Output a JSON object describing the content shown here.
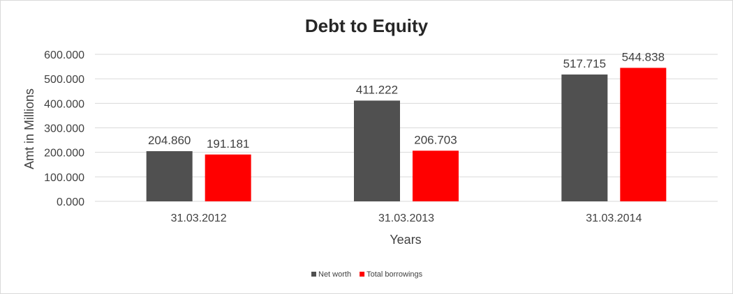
{
  "chart_data": {
    "type": "bar",
    "title": "Debt to Equity",
    "xlabel": "Years",
    "ylabel": "Amt in Millions",
    "categories": [
      "31.03.2012",
      "31.03.2013",
      "31.03.2014"
    ],
    "series": [
      {
        "name": "Net worth",
        "values": [
          204.86,
          411.222,
          517.715
        ],
        "labels": [
          "204.860",
          "411.222",
          "517.715"
        ],
        "color": "#505050"
      },
      {
        "name": "Total borrowings",
        "values": [
          191.181,
          206.703,
          544.838
        ],
        "labels": [
          "191.181",
          "206.703",
          "544.838"
        ],
        "color": "#ff0000"
      }
    ],
    "ylim": [
      0,
      600
    ],
    "yticks": [
      0,
      100,
      200,
      300,
      400,
      500,
      600
    ],
    "ytick_labels": [
      "0.000",
      "100.000",
      "200.000",
      "300.000",
      "400.000",
      "500.000",
      "600.000"
    ],
    "grid": true,
    "legend_position": "bottom"
  }
}
